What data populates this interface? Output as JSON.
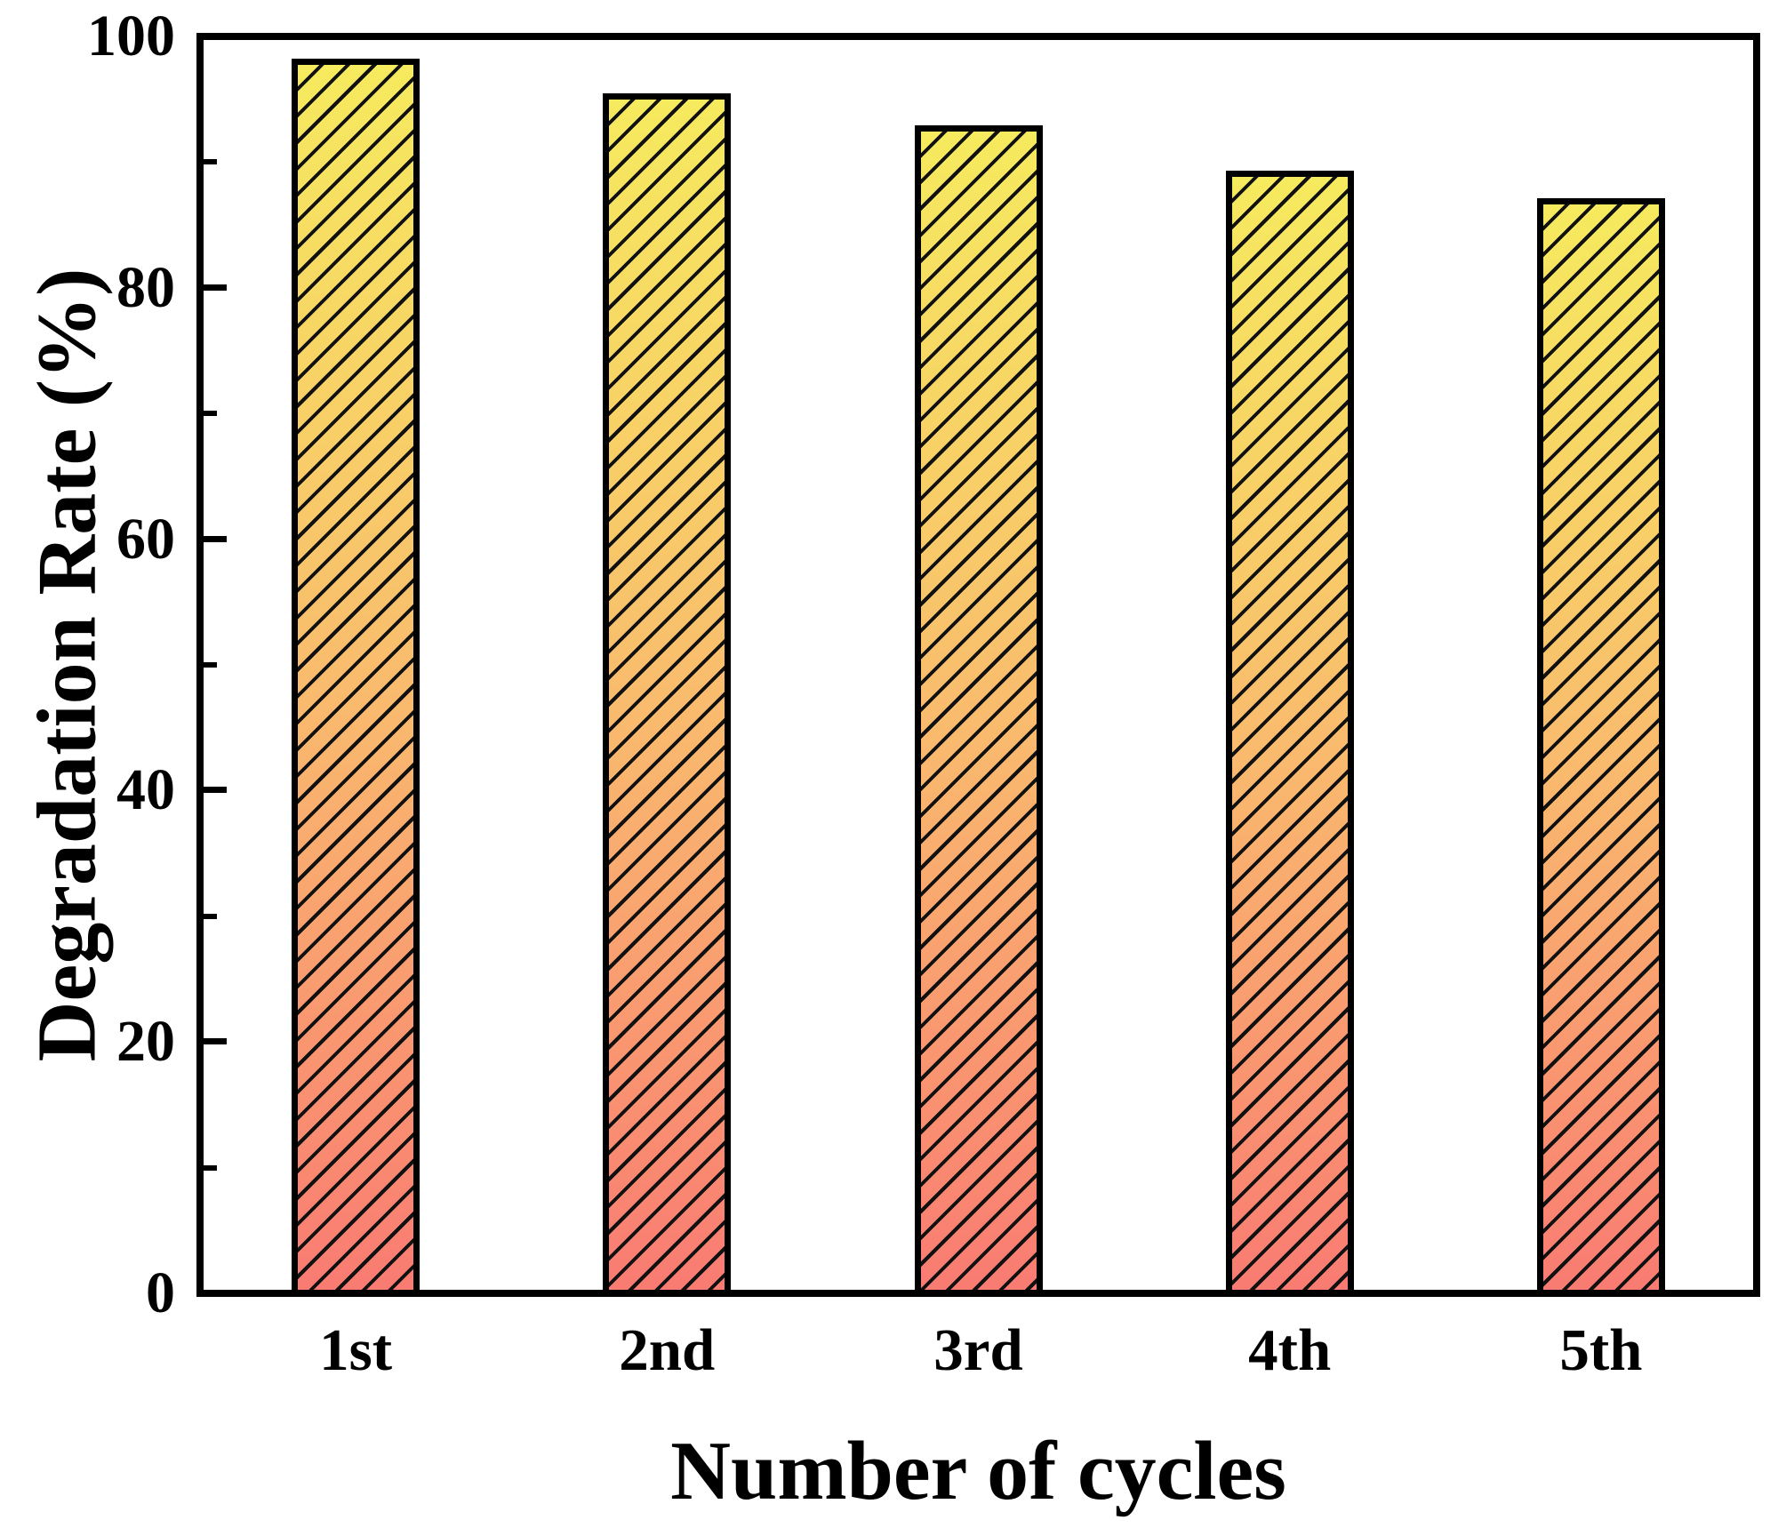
{
  "chart_data": {
    "type": "bar",
    "title": "",
    "categories": [
      "1st",
      "2nd",
      "3rd",
      "4th",
      "5th"
    ],
    "values": [
      98.2,
      95.5,
      92.9,
      89.3,
      87.1
    ],
    "xlabel": "Number of cycles",
    "ylabel": "Degradation Rate (%)",
    "ylim": [
      0,
      100
    ],
    "y_major_ticks": [
      0,
      20,
      40,
      60,
      80,
      100
    ],
    "y_minor_ticks": [
      10,
      30,
      50,
      70,
      90
    ],
    "grid": false,
    "legend": false,
    "bar_hatch": "forward-diagonal",
    "colors": {
      "bar_gradient_top": "#f6ea5e",
      "bar_gradient_mid": "#f9ba6e",
      "bar_gradient_bottom": "#f97b72",
      "hatch_line": "#111111",
      "bar_border": "#000000",
      "axis": "#000000",
      "background": "#ffffff"
    }
  }
}
